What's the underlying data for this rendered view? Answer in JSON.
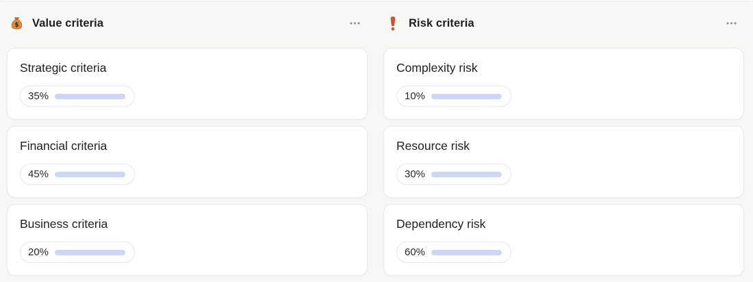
{
  "board": {
    "columns": [
      {
        "id": "value-criteria",
        "icon": "money-bag",
        "title": "Value criteria",
        "menu_tooltip": "More options",
        "cards": [
          {
            "title": "Strategic criteria",
            "percent": 35,
            "percent_label": "35%"
          },
          {
            "title": "Financial criteria",
            "percent": 45,
            "percent_label": "45%"
          },
          {
            "title": "Business criteria",
            "percent": 20,
            "percent_label": "20%"
          }
        ]
      },
      {
        "id": "risk-criteria",
        "icon": "exclamation-mark",
        "title": "Risk criteria",
        "menu_tooltip": "More options",
        "cards": [
          {
            "title": "Complexity risk",
            "percent": 10,
            "percent_label": "10%"
          },
          {
            "title": "Resource risk",
            "percent": 30,
            "percent_label": "30%"
          },
          {
            "title": "Dependency risk",
            "percent": 60,
            "percent_label": "60%"
          }
        ]
      }
    ],
    "colors": {
      "progress_fill": "#4263eb",
      "progress_track": "#cdd6f7",
      "emoji_orange": "#d9742f",
      "exclamation_red": "#cd5632"
    }
  }
}
